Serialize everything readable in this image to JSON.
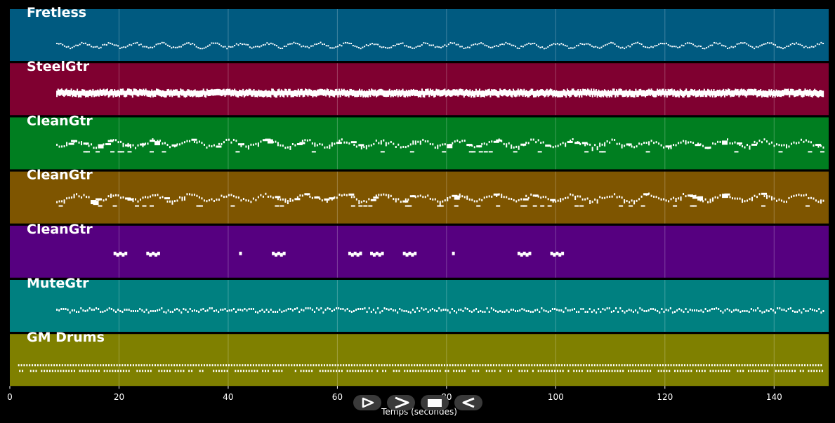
{
  "app": {
    "time_unit": "seconds"
  },
  "chart_data": {
    "type": "piano-roll",
    "xlabel": "Temps (secondes)",
    "xlim": [
      0,
      150
    ],
    "xticks": [
      0,
      20,
      40,
      60,
      80,
      100,
      120,
      140
    ],
    "grid": true,
    "tracks": [
      {
        "name": "Fretless",
        "color": "#005a80",
        "pattern": "wave",
        "start": 8.5,
        "end": 149
      },
      {
        "name": "SteelGtr",
        "color": "#7f0030",
        "pattern": "dense",
        "start": 8.5,
        "end": 149
      },
      {
        "name": "CleanGtr",
        "color": "#007e20",
        "pattern": "riff",
        "start": 8.5,
        "end": 149
      },
      {
        "name": "CleanGtr",
        "color": "#7e5500",
        "pattern": "riff",
        "start": 8.5,
        "end": 149
      },
      {
        "name": "CleanGtr",
        "color": "#560080",
        "pattern": "sparse",
        "start": 19,
        "end": 100
      },
      {
        "name": "MuteGtr",
        "color": "#008080",
        "pattern": "dots",
        "start": 8.5,
        "end": 149
      },
      {
        "name": "GM Drums",
        "color": "#7f8000",
        "pattern": "drums",
        "start": 1.5,
        "end": 149
      }
    ],
    "sparse_clusters": [
      19,
      25,
      42,
      48,
      62,
      64,
      66,
      72,
      81,
      93,
      99
    ]
  },
  "controls": [
    {
      "name": "play-icon",
      "label": "play"
    },
    {
      "name": "forward-icon",
      "label": "forward"
    },
    {
      "name": "stop-icon",
      "label": "stop"
    },
    {
      "name": "rewind-icon",
      "label": "rewind"
    }
  ]
}
